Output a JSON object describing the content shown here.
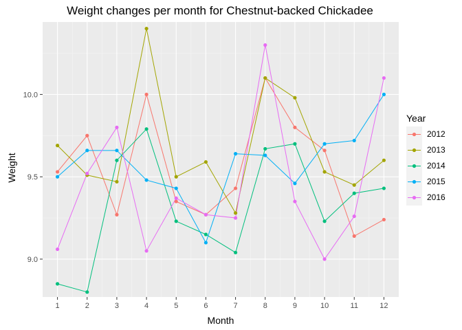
{
  "chart_data": {
    "type": "line",
    "title": "Weight changes per month for Chestnut-backed Chickadee",
    "xlabel": "Month",
    "ylabel": "Weight",
    "x": [
      1,
      2,
      3,
      4,
      5,
      6,
      7,
      8,
      9,
      10,
      11,
      12
    ],
    "xlim": [
      0.5,
      12.5
    ],
    "ylim": [
      8.77,
      10.44
    ],
    "yticks": [
      9.0,
      9.5,
      10.0
    ],
    "ytick_labels": [
      "9.0",
      "9.5",
      "10.0"
    ],
    "grid": true,
    "legend_title": "Year",
    "legend_position": "right",
    "series": [
      {
        "name": "2012",
        "color": "#F8766D",
        "values": [
          9.53,
          9.75,
          9.27,
          10.0,
          9.35,
          9.27,
          9.43,
          10.1,
          9.8,
          9.66,
          9.14,
          9.24
        ]
      },
      {
        "name": "2013",
        "color": "#A3A500",
        "values": [
          9.69,
          9.51,
          9.47,
          10.4,
          9.5,
          9.59,
          9.28,
          10.1,
          9.98,
          9.53,
          9.45,
          9.6
        ]
      },
      {
        "name": "2014",
        "color": "#00BF7D",
        "values": [
          8.85,
          8.8,
          9.6,
          9.79,
          9.23,
          9.15,
          9.04,
          9.67,
          9.7,
          9.23,
          9.4,
          9.43
        ]
      },
      {
        "name": "2015",
        "color": "#00B0F6",
        "values": [
          9.5,
          9.66,
          9.66,
          9.48,
          9.43,
          9.1,
          9.64,
          9.63,
          9.46,
          9.7,
          9.72,
          10.0
        ]
      },
      {
        "name": "2016",
        "color": "#E76BF3",
        "values": [
          9.06,
          9.52,
          9.8,
          9.05,
          9.37,
          9.27,
          9.25,
          10.3,
          9.35,
          9.0,
          9.26,
          10.1
        ]
      }
    ]
  }
}
